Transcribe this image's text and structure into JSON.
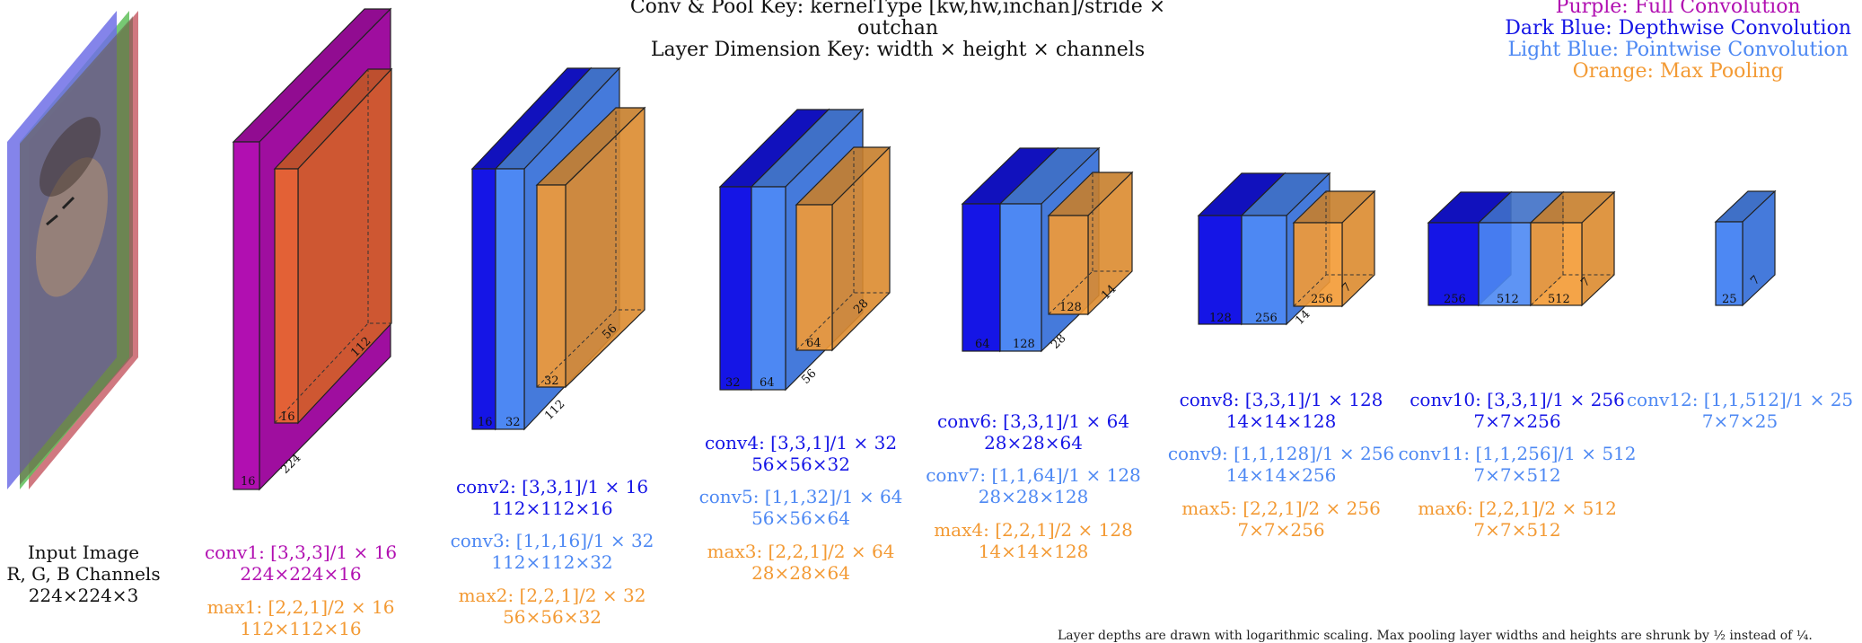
{
  "header": {
    "key_line1": "Conv & Pool Key: kernelType [kw,hw,inchan]/stride × outchan",
    "key_line2": "Layer Dimension Key: width × height × channels"
  },
  "legend": {
    "items": [
      {
        "label": "Purple: Full Convolution",
        "color": "#b10fb1"
      },
      {
        "label": "Dark Blue: Depthwise Convolution",
        "color": "#1515e6"
      },
      {
        "label": "Light Blue: Pointwise Convolution",
        "color": "#4d88f3"
      },
      {
        "label": "Orange: Max Pooling",
        "color": "#f39a34"
      }
    ]
  },
  "colors": {
    "full_conv": "#b10fb1",
    "depthwise": "#1515e6",
    "pointwise": "#4d88f3",
    "maxpool": "#f39a34",
    "maxpool_conv1": "#ea6a2a"
  },
  "input": {
    "line1": "Input Image",
    "line2": "R, G, B Channels",
    "line3": "224×224×3"
  },
  "stages": [
    {
      "block_labels": [
        "16",
        "224",
        "16",
        "112"
      ],
      "captions": [
        {
          "kind": "full",
          "line1": "conv1: [3,3,3]/1 × 16",
          "line2": "224×224×16"
        },
        {
          "kind": "maxpool",
          "line1": "max1: [2,2,1]/2 × 16",
          "line2": "112×112×16"
        }
      ]
    },
    {
      "block_labels": [
        "16",
        "32",
        "112",
        "32",
        "56"
      ],
      "captions": [
        {
          "kind": "depthwise",
          "line1": "conv2: [3,3,1]/1 × 16",
          "line2": "112×112×16"
        },
        {
          "kind": "pointwise",
          "line1": "conv3: [1,1,16]/1 × 32",
          "line2": "112×112×32"
        },
        {
          "kind": "maxpool",
          "line1": "max2: [2,2,1]/2 × 32",
          "line2": "56×56×32"
        }
      ]
    },
    {
      "block_labels": [
        "32",
        "64",
        "56",
        "64",
        "28"
      ],
      "captions": [
        {
          "kind": "depthwise",
          "line1": "conv4: [3,3,1]/1 × 32",
          "line2": "56×56×32"
        },
        {
          "kind": "pointwise",
          "line1": "conv5: [1,1,32]/1 × 64",
          "line2": "56×56×64"
        },
        {
          "kind": "maxpool",
          "line1": "max3: [2,2,1]/2 × 64",
          "line2": "28×28×64"
        }
      ]
    },
    {
      "block_labels": [
        "64",
        "128",
        "28",
        "128",
        "14"
      ],
      "captions": [
        {
          "kind": "depthwise",
          "line1": "conv6: [3,3,1]/1 × 64",
          "line2": "28×28×64"
        },
        {
          "kind": "pointwise",
          "line1": "conv7: [1,1,64]/1 × 128",
          "line2": "28×28×128"
        },
        {
          "kind": "maxpool",
          "line1": "max4: [2,2,1]/2 × 128",
          "line2": "14×14×128"
        }
      ]
    },
    {
      "block_labels": [
        "128",
        "256",
        "14",
        "256",
        "7"
      ],
      "captions": [
        {
          "kind": "depthwise",
          "line1": "conv8: [3,3,1]/1 × 128",
          "line2": "14×14×128"
        },
        {
          "kind": "pointwise",
          "line1": "conv9: [1,1,128]/1 × 256",
          "line2": "14×14×256"
        },
        {
          "kind": "maxpool",
          "line1": "max5: [2,2,1]/2 × 256",
          "line2": "7×7×256"
        }
      ]
    },
    {
      "block_labels": [
        "256",
        "512",
        "512",
        "7"
      ],
      "captions": [
        {
          "kind": "depthwise",
          "line1": "conv10: [3,3,1]/1 × 256",
          "line2": "7×7×256"
        },
        {
          "kind": "pointwise",
          "line1": "conv11: [1,1,256]/1 × 512",
          "line2": "7×7×512"
        },
        {
          "kind": "maxpool",
          "line1": "max6: [2,2,1]/2 × 512",
          "line2": "7×7×512"
        }
      ]
    },
    {
      "block_labels": [
        "25",
        "7"
      ],
      "captions": [
        {
          "kind": "pointwise",
          "line1": "conv12: [1,1,512]/1 × 25",
          "line2": "7×7×25"
        }
      ]
    }
  ],
  "footnote": "Layer depths are drawn with logarithmic scaling. Max pooling layer widths and heights are shrunk by ½ instead of ¼."
}
